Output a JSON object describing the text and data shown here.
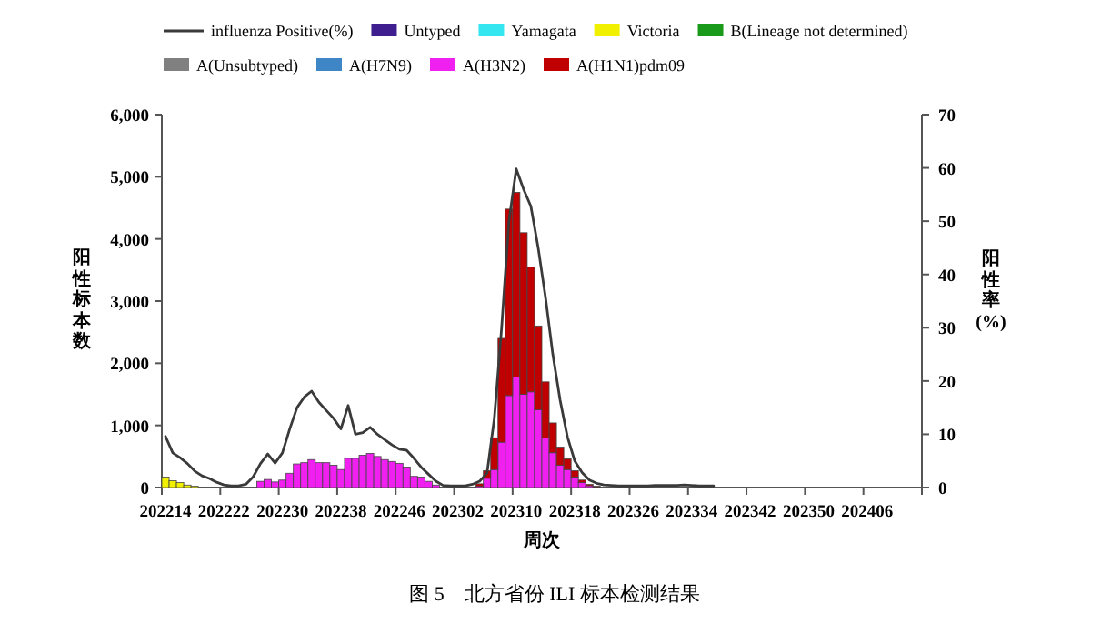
{
  "chart_data": {
    "type": "bar",
    "stacked": true,
    "xlabel": "周次",
    "ylabel": "阳性标本数",
    "y2label": "阳性率(%)",
    "annotations": [
      "图 5　北方省份 ILI 标本检测结果"
    ],
    "legend": "top",
    "categories": [
      "202214",
      null,
      null,
      null,
      null,
      null,
      null,
      null,
      "202222",
      null,
      null,
      null,
      null,
      null,
      null,
      null,
      "202230",
      null,
      null,
      null,
      null,
      null,
      null,
      null,
      "202238",
      null,
      null,
      null,
      null,
      null,
      null,
      null,
      "202246",
      null,
      null,
      null,
      null,
      null,
      null,
      null,
      "202302",
      null,
      null,
      null,
      null,
      null,
      null,
      null,
      "202310",
      null,
      null,
      null,
      null,
      null,
      null,
      null,
      "202318",
      null,
      null,
      null,
      null,
      null,
      null,
      null,
      "202326",
      null,
      null,
      null,
      null,
      null,
      null,
      null,
      "202334",
      null,
      null,
      null,
      null,
      null,
      null,
      null,
      "202342",
      null,
      null,
      null,
      null,
      null,
      null,
      null,
      "202350",
      null,
      null,
      null,
      null,
      null,
      null,
      null,
      "202406",
      null,
      null,
      null,
      null,
      null,
      null,
      null
    ],
    "ylim": [
      0,
      6000
    ],
    "yticks": [
      {
        "value": 0,
        "label": "0"
      },
      {
        "value": 1000,
        "label": "1,000"
      },
      {
        "value": 2000,
        "label": "2,000"
      },
      {
        "value": 3000,
        "label": "3,000"
      },
      {
        "value": 4000,
        "label": "4,000"
      },
      {
        "value": 5000,
        "label": "5,000"
      },
      {
        "value": 6000,
        "label": "6,000"
      }
    ],
    "y2lim": [
      0,
      70
    ],
    "y2ticks": [
      0,
      10,
      20,
      30,
      40,
      50,
      60,
      70
    ],
    "series": [
      {
        "name": "influenza Positive(%)",
        "type": "line",
        "axis": "y2",
        "color": "#3a3a3a",
        "values": [
          9.6,
          6.5,
          5.6,
          4.5,
          3.1,
          2.2,
          1.7,
          1.0,
          0.5,
          0.3,
          0.3,
          0.6,
          2.0,
          4.5,
          6.3,
          4.6,
          6.5,
          11,
          15,
          17,
          18.1,
          16,
          14.5,
          13,
          11,
          15.4,
          10,
          10.3,
          11.3,
          10,
          9,
          8,
          7.2,
          7,
          5.5,
          3.8,
          2.5,
          1.2,
          0.4,
          0.3,
          0.3,
          0.3,
          0.6,
          1.2,
          2.7,
          13,
          30,
          50,
          59.8,
          56,
          52.8,
          45,
          35.7,
          25,
          16.4,
          9.5,
          5.0,
          2.8,
          1.4,
          0.8,
          0.5,
          0.4,
          0.3,
          0.3,
          0.3,
          0.3,
          0.3,
          0.4,
          0.4,
          0.4,
          0.4,
          0.5,
          0.4,
          0.3,
          0.3,
          0.3,
          null,
          null,
          null,
          null,
          null,
          null,
          null,
          null,
          null,
          null,
          null,
          null,
          null,
          null,
          null,
          null,
          null,
          null,
          null,
          null,
          null,
          null,
          null,
          null,
          null,
          null,
          null,
          null
        ]
      },
      {
        "name": "Untyped",
        "color": "#3f1f8f",
        "values": [
          null,
          null,
          null,
          null,
          null,
          null,
          null,
          null,
          null,
          null,
          null,
          null,
          null,
          null,
          null,
          null,
          null,
          null,
          null,
          null,
          null,
          null,
          null,
          null,
          null,
          null,
          null,
          null,
          null,
          null,
          null,
          null,
          null,
          null,
          null,
          null,
          null,
          null,
          null,
          null,
          null,
          null,
          null,
          null,
          null,
          null,
          null,
          null,
          null,
          null,
          null,
          null,
          null,
          null,
          null,
          null,
          null,
          null,
          null,
          null,
          null,
          null,
          null,
          null,
          null,
          null,
          null,
          null,
          null,
          null,
          null,
          null,
          null,
          null,
          null,
          null,
          null,
          null,
          null,
          null,
          null,
          null,
          null,
          null,
          null,
          null,
          null,
          null,
          null,
          null,
          null,
          null,
          null,
          null,
          null,
          null,
          null,
          null,
          null,
          null,
          null,
          null,
          null,
          null
        ]
      },
      {
        "name": "Yamagata",
        "color": "#33e6f0",
        "values": [
          null,
          null,
          null,
          null,
          null,
          null,
          null,
          null,
          null,
          null,
          null,
          null,
          null,
          null,
          null,
          null,
          null,
          null,
          null,
          null,
          null,
          null,
          null,
          null,
          null,
          null,
          null,
          null,
          null,
          null,
          null,
          null,
          null,
          null,
          null,
          null,
          null,
          null,
          null,
          null,
          null,
          null,
          null,
          null,
          null,
          null,
          null,
          null,
          null,
          null,
          null,
          null,
          null,
          null,
          null,
          null,
          null,
          null,
          null,
          null,
          null,
          null,
          null,
          null,
          null,
          null,
          null,
          null,
          null,
          null,
          null,
          null,
          null,
          null,
          null,
          null,
          null,
          null,
          null,
          null,
          null,
          null,
          null,
          null,
          null,
          null,
          null,
          null,
          null,
          null,
          null,
          null,
          null,
          null,
          null,
          null,
          null,
          null,
          null,
          null,
          null,
          null,
          null,
          null
        ]
      },
      {
        "name": "Victoria",
        "color": "#f0f000",
        "values": [
          170,
          110,
          80,
          40,
          20,
          null,
          null,
          null,
          null,
          null,
          null,
          null,
          null,
          null,
          null,
          null,
          null,
          null,
          null,
          null,
          null,
          null,
          null,
          null,
          null,
          null,
          null,
          null,
          null,
          null,
          null,
          null,
          null,
          null,
          null,
          null,
          null,
          null,
          null,
          null,
          null,
          null,
          null,
          null,
          null,
          null,
          null,
          null,
          null,
          null,
          null,
          null,
          null,
          null,
          null,
          null,
          null,
          null,
          null,
          null,
          null,
          null,
          null,
          null,
          null,
          null,
          null,
          null,
          null,
          null,
          null,
          null,
          null,
          null,
          null,
          null,
          null,
          null,
          null,
          null,
          null,
          null,
          null,
          null,
          null,
          null,
          null,
          null,
          null,
          null,
          null,
          null,
          null,
          null,
          null,
          null,
          null,
          null,
          null,
          null,
          null,
          null,
          null,
          null
        ]
      },
      {
        "name": "B(Lineage not determined)",
        "color": "#1a9a1a",
        "values": [
          null,
          null,
          null,
          null,
          null,
          null,
          null,
          null,
          null,
          null,
          null,
          null,
          null,
          null,
          null,
          null,
          null,
          null,
          null,
          null,
          null,
          null,
          null,
          null,
          null,
          null,
          null,
          null,
          null,
          null,
          null,
          null,
          null,
          null,
          null,
          null,
          null,
          null,
          null,
          null,
          null,
          null,
          null,
          null,
          null,
          null,
          null,
          null,
          null,
          null,
          null,
          null,
          null,
          null,
          null,
          null,
          null,
          null,
          null,
          null,
          null,
          null,
          null,
          null,
          null,
          null,
          null,
          null,
          null,
          null,
          null,
          null,
          null,
          null,
          null,
          null,
          null,
          null,
          null,
          null,
          null,
          null,
          null,
          null,
          null,
          null,
          null,
          null,
          null,
          null,
          null,
          null,
          null,
          null,
          null,
          null,
          null,
          null,
          null,
          null,
          null,
          null,
          null,
          null
        ]
      },
      {
        "name": "A(Unsubtyped)",
        "color": "#808080",
        "values": [
          null,
          null,
          null,
          null,
          null,
          null,
          null,
          null,
          null,
          null,
          null,
          null,
          null,
          null,
          null,
          null,
          null,
          null,
          null,
          null,
          null,
          null,
          null,
          null,
          null,
          null,
          null,
          null,
          null,
          null,
          null,
          null,
          null,
          null,
          null,
          null,
          null,
          null,
          null,
          null,
          null,
          null,
          null,
          null,
          null,
          null,
          null,
          null,
          null,
          null,
          null,
          null,
          null,
          null,
          null,
          null,
          null,
          null,
          null,
          null,
          null,
          null,
          null,
          null,
          null,
          null,
          null,
          null,
          null,
          null,
          null,
          null,
          null,
          null,
          null,
          null,
          null,
          null,
          null,
          null,
          null,
          null,
          null,
          null,
          null,
          null,
          null,
          null,
          null,
          null,
          null,
          null,
          null,
          null,
          null,
          null,
          null,
          null,
          null,
          null,
          null,
          null,
          null,
          null
        ]
      },
      {
        "name": "A(H7N9)",
        "color": "#3f86c6",
        "values": [
          null,
          null,
          null,
          null,
          null,
          null,
          null,
          null,
          null,
          null,
          null,
          null,
          null,
          null,
          null,
          null,
          null,
          null,
          null,
          null,
          null,
          null,
          null,
          null,
          null,
          null,
          null,
          null,
          null,
          null,
          null,
          null,
          null,
          null,
          null,
          null,
          null,
          null,
          null,
          null,
          null,
          null,
          null,
          null,
          null,
          null,
          null,
          null,
          null,
          null,
          null,
          null,
          null,
          null,
          null,
          null,
          null,
          null,
          null,
          null,
          null,
          null,
          null,
          null,
          null,
          null,
          null,
          null,
          null,
          null,
          null,
          null,
          null,
          null,
          null,
          null,
          null,
          null,
          null,
          null,
          null,
          null,
          null,
          null,
          null,
          null,
          null,
          null,
          null,
          null,
          null,
          null,
          null,
          null,
          null,
          null,
          null,
          null,
          null,
          null,
          null,
          null,
          null,
          null
        ]
      },
      {
        "name": "A(H3N2)",
        "color": "#f020f0",
        "values": [
          null,
          null,
          null,
          null,
          null,
          null,
          null,
          null,
          null,
          null,
          null,
          null,
          null,
          100,
          130,
          90,
          120,
          230,
          380,
          400,
          450,
          400,
          400,
          360,
          290,
          470,
          470,
          520,
          550,
          500,
          450,
          420,
          390,
          330,
          180,
          170,
          100,
          40,
          null,
          null,
          null,
          null,
          null,
          20,
          150,
          290,
          730,
          1480,
          1780,
          1500,
          1540,
          1250,
          800,
          560,
          360,
          290,
          170,
          80,
          30,
          10,
          null,
          null,
          null,
          null,
          null,
          null,
          null,
          null,
          null,
          null,
          null,
          null,
          null,
          null,
          null,
          null,
          null,
          null,
          null,
          null,
          null,
          null,
          null,
          null,
          null,
          null,
          null,
          null,
          null,
          null,
          null,
          null,
          null,
          null,
          null,
          null,
          null,
          null,
          null,
          null,
          null,
          null,
          null,
          null
        ]
      },
      {
        "name": "A(H1N1)pdm09",
        "color": "#c00000",
        "values": [
          null,
          null,
          null,
          null,
          null,
          null,
          null,
          null,
          null,
          null,
          null,
          null,
          null,
          null,
          null,
          null,
          null,
          null,
          null,
          null,
          null,
          null,
          null,
          null,
          null,
          null,
          null,
          null,
          null,
          null,
          null,
          null,
          null,
          null,
          null,
          null,
          null,
          null,
          null,
          null,
          null,
          null,
          null,
          40,
          120,
          510,
          1670,
          3000,
          2970,
          2600,
          2010,
          1350,
          900,
          480,
          290,
          170,
          100,
          40,
          20,
          10,
          null,
          null,
          null,
          null,
          null,
          null,
          null,
          null,
          null,
          null,
          null,
          null,
          null,
          null,
          null,
          null,
          null,
          null,
          null,
          null,
          null,
          null,
          null,
          null,
          null,
          null,
          null,
          null,
          null,
          null,
          null,
          null,
          null,
          null,
          null,
          null,
          null,
          null,
          null,
          null,
          null,
          null,
          null,
          null
        ]
      }
    ]
  }
}
